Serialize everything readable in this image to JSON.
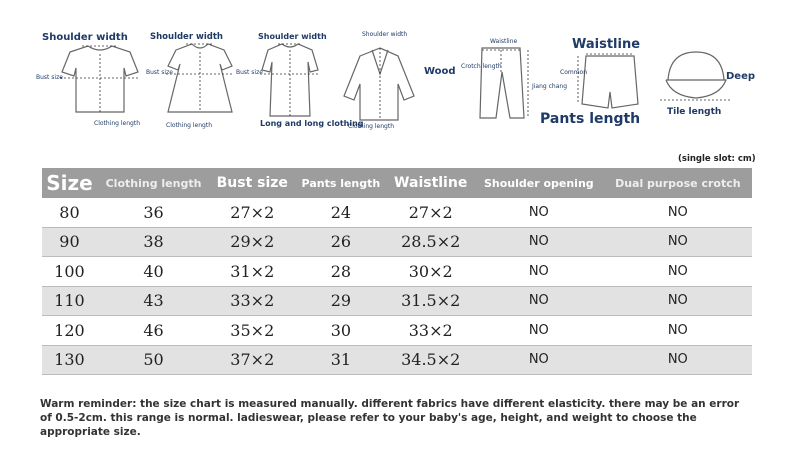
{
  "diagram": {
    "labels": [
      "Shoulder width",
      "Bust size",
      "Clothing length",
      "Shoulder width",
      "Bust size",
      "Clothing length",
      "Shoulder width",
      "Bust size",
      "Long and long clothing",
      "Shoulder width",
      "Wood",
      "Clothing length",
      "Waistline",
      "Crotch length",
      "Jiang chang",
      "Waistline",
      "Common",
      "Pants length",
      "Deep",
      "Tile length"
    ]
  },
  "unit_note": "(single slot: cm)",
  "table": {
    "header": [
      "Size",
      "Clothing length",
      "Bust size",
      "Pants length",
      "Waistline",
      "Shoulder opening",
      "Dual purpose crotch"
    ],
    "rows": [
      [
        "80",
        "36",
        "27×2",
        "24",
        "27×2",
        "NO",
        "NO"
      ],
      [
        "90",
        "38",
        "29×2",
        "26",
        "28.5×2",
        "NO",
        "NO"
      ],
      [
        "100",
        "40",
        "31×2",
        "28",
        "30×2",
        "NO",
        "NO"
      ],
      [
        "110",
        "43",
        "33×2",
        "29",
        "31.5×2",
        "NO",
        "NO"
      ],
      [
        "120",
        "46",
        "35×2",
        "30",
        "33×2",
        "NO",
        "NO"
      ],
      [
        "130",
        "50",
        "37×2",
        "31",
        "34.5×2",
        "NO",
        "NO"
      ]
    ]
  },
  "note": "Warm reminder: the size chart is measured manually. different fabrics have different elasticity. there may be an error of 0.5-2cm. this range is normal. ladieswear, please refer to your baby's age, height, and weight to choose the appropriate size."
}
